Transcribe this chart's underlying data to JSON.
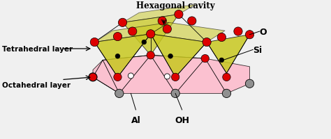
{
  "labels": {
    "tetrahedral": "Tetrahedral layer",
    "octahedral": "Octahedral layer",
    "O": "O",
    "Si": "Si",
    "Al": "Al",
    "OH": "OH",
    "hex_cavity": "Hexagonal cavity"
  },
  "colors": {
    "red": "#dd0000",
    "yellow_green": "#c8c820",
    "pink": "#ffb6c8",
    "gray": "#909090",
    "black": "#000000",
    "white": "#ffffff",
    "bg": "#f0f0f0"
  },
  "fig_w": 4.74,
  "fig_h": 2.01,
  "dpi": 100
}
